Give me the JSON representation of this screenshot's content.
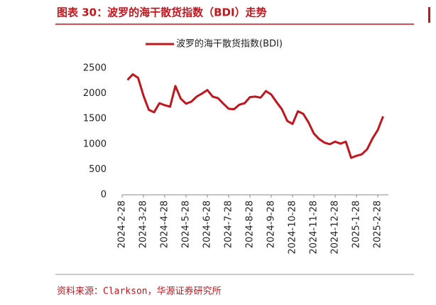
{
  "chart_data": {
    "type": "line",
    "title": "图表 30：波罗的海干散货指数（BDI）走势",
    "categories": [
      "2024-2-28",
      null,
      null,
      null,
      "2024-3-28",
      null,
      null,
      null,
      "2024-4-28",
      null,
      null,
      null,
      "2024-5-28",
      null,
      null,
      null,
      "2024-6-28",
      null,
      null,
      null,
      "2024-7-28",
      null,
      null,
      null,
      "2024-8-28",
      null,
      null,
      null,
      "2024-9-28",
      null,
      null,
      null,
      "2024-10-28",
      null,
      null,
      null,
      "2024-11-28",
      null,
      null,
      null,
      "2024-12-28",
      null,
      null,
      null,
      "2025-1-28",
      null,
      null,
      null,
      "2025-2-28",
      null,
      null
    ],
    "series": [
      {
        "name": "波罗的海干散货指数(BDI)",
        "color": "#c0161e",
        "values": [
          null,
          2270,
          2380,
          2310,
          1960,
          1680,
          1630,
          1810,
          1770,
          1740,
          2150,
          1900,
          1800,
          1840,
          1940,
          2000,
          2070,
          1940,
          1910,
          1800,
          1700,
          1690,
          1780,
          1810,
          1930,
          1940,
          1920,
          2050,
          1980,
          1830,
          1690,
          1460,
          1400,
          1650,
          1600,
          1430,
          1210,
          1100,
          1030,
          1000,
          1050,
          1010,
          1050,
          730,
          770,
          800,
          900,
          1110,
          1280,
          1550,
          null
        ]
      }
    ],
    "ylim": [
      0,
      2500
    ],
    "yticks": [
      0,
      500,
      1000,
      1500,
      2000,
      2500
    ],
    "grid": false,
    "legend": "top"
  },
  "source": "资料来源：Clarkson，华源证券研究所"
}
